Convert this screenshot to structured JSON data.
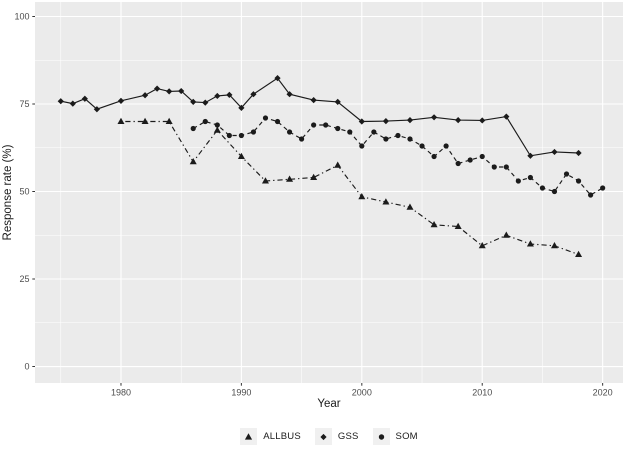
{
  "chart_data": {
    "type": "line",
    "title": "",
    "xlabel": "Year",
    "ylabel": "Response rate (%)",
    "x_ticks": [
      1980,
      1990,
      2000,
      2010,
      2020
    ],
    "x_minor_ticks": [
      1975,
      1985,
      1995,
      2005,
      2015
    ],
    "xlim": [
      1972.86,
      2021.69
    ],
    "y_ticks": [
      0,
      25,
      50,
      75,
      100
    ],
    "y_minor_ticks": [
      12.5,
      37.5,
      62.5,
      87.5
    ],
    "ylim": [
      -4.71,
      104.14
    ],
    "grid": "major and minor white gridlines on grey panel",
    "legend_position": "bottom",
    "colors": {
      "line": "#1b1b1b",
      "panel": "#EBEBEB",
      "grid": "#FFFFFF",
      "tick_mark": "#333333",
      "tick_text": "#4D4D4D",
      "axis_title": "#1a1a1a",
      "legend_key": "#F0F0F0"
    },
    "series": [
      {
        "name": "ALLBUS",
        "marker": "triangle",
        "linetype": "dotdash",
        "x": [
          1980,
          1982,
          1984,
          1986,
          1988,
          1990,
          1992,
          1994,
          1996,
          1998,
          2000,
          2002,
          2004,
          2006,
          2008,
          2010,
          2012,
          2014,
          2016,
          2018
        ],
        "y": [
          70,
          70,
          70,
          58.5,
          67.5,
          60,
          53,
          53.5,
          54,
          57.5,
          48.5,
          47,
          45.5,
          40.5,
          40,
          34.5,
          37.5,
          35,
          34.5,
          32
        ]
      },
      {
        "name": "GSS",
        "marker": "diamond",
        "linetype": "solid",
        "x": [
          1975,
          1976,
          1977,
          1978,
          1980,
          1982,
          1983,
          1984,
          1985,
          1986,
          1987,
          1988,
          1989,
          1990,
          1991,
          1993,
          1994,
          1996,
          1998,
          2000,
          2002,
          2004,
          2006,
          2008,
          2010,
          2012,
          2014,
          2016,
          2018
        ],
        "y": [
          75.8,
          75.1,
          76.5,
          73.5,
          75.9,
          77.5,
          79.4,
          78.6,
          78.7,
          75.6,
          75.4,
          77.3,
          77.6,
          73.9,
          77.8,
          82.4,
          77.8,
          76.1,
          75.6,
          70.0,
          70.1,
          70.4,
          71.2,
          70.4,
          70.3,
          71.4,
          60.2,
          61.3,
          61.0
        ]
      },
      {
        "name": "SOM",
        "marker": "circle",
        "linetype": "dashed",
        "x": [
          1986,
          1987,
          1988,
          1989,
          1990,
          1991,
          1992,
          1993,
          1994,
          1995,
          1996,
          1997,
          1998,
          1999,
          2000,
          2001,
          2002,
          2003,
          2004,
          2005,
          2006,
          2007,
          2008,
          2009,
          2010,
          2011,
          2012,
          2013,
          2014,
          2015,
          2016,
          2017,
          2018,
          2019,
          2020
        ],
        "y": [
          68,
          70,
          69,
          66,
          66,
          67,
          71,
          70,
          67,
          65,
          69,
          69,
          68,
          67,
          63,
          67,
          65,
          66,
          65,
          63,
          60,
          63,
          58,
          59,
          60,
          57,
          57,
          53,
          54,
          51,
          50,
          55,
          53,
          49,
          51
        ]
      }
    ]
  }
}
